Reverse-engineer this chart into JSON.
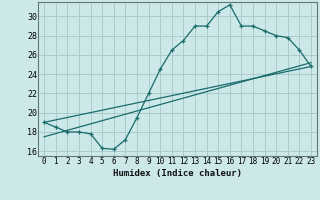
{
  "title": "",
  "xlabel": "Humidex (Indice chaleur)",
  "ylabel": "",
  "background_color": "#cce8e8",
  "grid_color": "#aacccc",
  "line_color": "#1a6b6b",
  "xlim": [
    -0.5,
    23.5
  ],
  "ylim": [
    15.5,
    31.5
  ],
  "xticks": [
    0,
    1,
    2,
    3,
    4,
    5,
    6,
    7,
    8,
    9,
    10,
    11,
    12,
    13,
    14,
    15,
    16,
    17,
    18,
    19,
    20,
    21,
    22,
    23
  ],
  "yticks": [
    16,
    18,
    20,
    22,
    24,
    26,
    28,
    30
  ],
  "line1_x": [
    0,
    1,
    2,
    3,
    4,
    5,
    6,
    7,
    8,
    9,
    10,
    11,
    12,
    13,
    14,
    15,
    16,
    17,
    18,
    19,
    20,
    21,
    22,
    23
  ],
  "line1_y": [
    19.0,
    18.5,
    18.0,
    18.0,
    17.8,
    16.3,
    16.2,
    17.2,
    19.5,
    22.0,
    24.5,
    26.5,
    27.5,
    29.0,
    29.0,
    30.5,
    31.2,
    29.0,
    29.0,
    28.5,
    28.0,
    27.8,
    26.5,
    24.8
  ],
  "line2_x": [
    0,
    23
  ],
  "line2_y": [
    19.0,
    24.8
  ],
  "line3_x": [
    0,
    23
  ],
  "line3_y": [
    17.5,
    25.2
  ]
}
